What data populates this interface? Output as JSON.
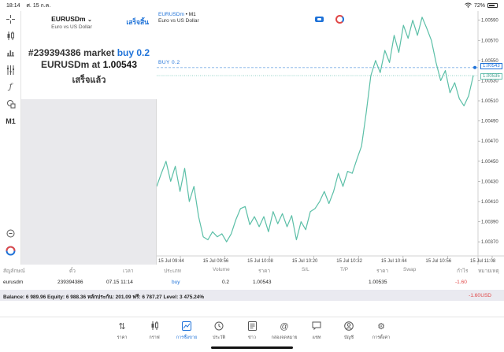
{
  "statusbar": {
    "time": "18:14",
    "date": "ศ. 15 ก.ค.",
    "battery": "72%"
  },
  "rail_tools": [
    "crosshair-icon",
    "candles-icon",
    "bars-icon",
    "indicators-icon",
    "function-icon",
    "shapes-icon"
  ],
  "rail_timeframe": "M1",
  "order_panel": {
    "symbol": "EURUSDm",
    "symbol_desc": "Euro vs US Dollar",
    "done_label": "เสร็จสิ้น",
    "line1_ticket": "#239394386 market",
    "line1_action": "buy 0.2",
    "line2_prefix": "EURUSDm at",
    "line2_price": "1.00543",
    "line3": "เสร็จแล้ว"
  },
  "chart_header": {
    "symbol": "EURUSDm",
    "sep": " • M1",
    "desc": "Euro vs US Dollar",
    "buy_line_label": "BUY 0.2"
  },
  "chart_data": {
    "type": "line",
    "y_ticks": [
      "1.00590",
      "1.00570",
      "1.00550",
      "1.00530",
      "1.00510",
      "1.00490",
      "1.00470",
      "1.00450",
      "1.00430",
      "1.00410",
      "1.00390",
      "1.00370"
    ],
    "x_ticks": [
      "15 Jul 09:44",
      "15 Jul 09:56",
      "15 Jul 10:08",
      "15 Jul 10:20",
      "15 Jul 10:32",
      "15 Jul 10:44",
      "15 Jul 10:56",
      "15 Jul 11:08"
    ],
    "ylim": [
      1.00356,
      1.00596
    ],
    "buy_price": 1.00543,
    "bid_price": 1.00535,
    "values": [
      1.00425,
      1.00438,
      1.0045,
      1.0043,
      1.00445,
      1.0042,
      1.00443,
      1.0041,
      1.00425,
      1.00395,
      1.00375,
      1.00372,
      1.0038,
      1.00375,
      1.00378,
      1.0037,
      1.00378,
      1.00392,
      1.00403,
      1.00405,
      1.00387,
      1.00395,
      1.00385,
      1.00395,
      1.0038,
      1.004,
      1.00388,
      1.00398,
      1.00385,
      1.00396,
      1.00372,
      1.0039,
      1.00382,
      1.004,
      1.00403,
      1.0041,
      1.0042,
      1.00408,
      1.0042,
      1.00438,
      1.00425,
      1.0044,
      1.00438,
      1.00452,
      1.00465,
      1.00498,
      1.00535,
      1.0055,
      1.00538,
      1.0056,
      1.00548,
      1.00575,
      1.00558,
      1.00585,
      1.00572,
      1.0059,
      1.00575,
      1.00593,
      1.00582,
      1.0057,
      1.00548,
      1.0053,
      1.0054,
      1.00518,
      1.00528,
      1.00512,
      1.00505,
      1.00515,
      1.00535
    ]
  },
  "chart_price_tags": {
    "buy": "1.00543",
    "bid": "1.00535"
  },
  "table": {
    "headers": [
      "สัญลักษณ์",
      "ตั๋ว",
      "เวลา",
      "ประเภท",
      "Volume",
      "ราคา",
      "S/L",
      "T/P",
      "ราคา",
      "Swap",
      "กำไร",
      "หมายเหตุ"
    ],
    "row": {
      "symbol": "eurusdm",
      "ticket": "239394386",
      "time": "07.15 11:14",
      "type": "buy",
      "volume": "0.2",
      "open_price": "1.00543",
      "sl": "",
      "tp": "",
      "price": "1.00535",
      "swap": "",
      "profit": "-1.60",
      "comment": ""
    },
    "summary": "Balance: 6 989.96 Equity: 6 988.36 หลักประกัน: 201.09 ฟรี: 6 787.27 Level: 3 475.24%",
    "summary_profit": "-1.60",
    "summary_currency": "USD"
  },
  "nav": [
    {
      "label": "ราคา",
      "icon": "quotes-arrows-icon"
    },
    {
      "label": "กราฟ",
      "icon": "chart-icon"
    },
    {
      "label": "การซื้อขาย",
      "icon": "trade-icon",
      "active": true
    },
    {
      "label": "ประวัติ",
      "icon": "history-icon"
    },
    {
      "label": "ข่าว",
      "icon": "news-icon"
    },
    {
      "label": "กล่องจดหมาย",
      "icon": "mailbox-icon"
    },
    {
      "label": "แชท",
      "icon": "chat-icon"
    },
    {
      "label": "บัญชี",
      "icon": "account-icon"
    },
    {
      "label": "การตั้งค่า",
      "icon": "settings-icon"
    }
  ],
  "colors": {
    "accent": "#1e72d8",
    "line": "#5bbfa7",
    "loss": "#e04747"
  }
}
